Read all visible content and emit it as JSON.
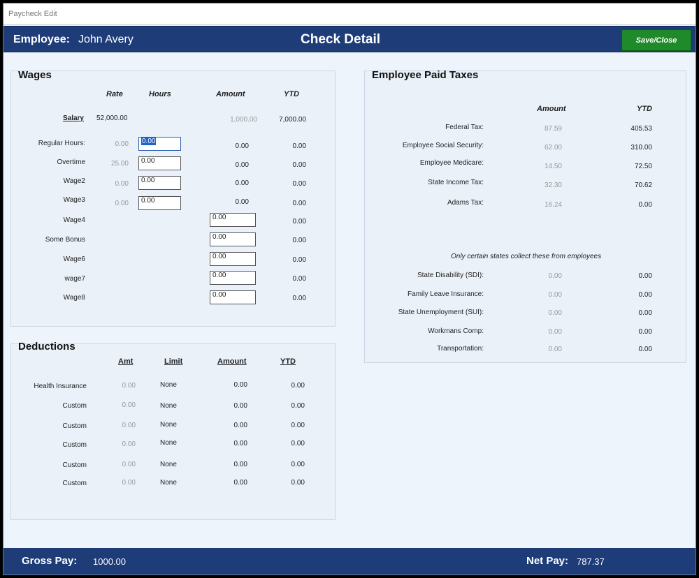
{
  "window": {
    "title": "Paycheck Edit"
  },
  "header": {
    "employee_label": "Employee:",
    "employee_name": "John Avery",
    "page_title": "Check Detail",
    "save_close_label": "Save/Close"
  },
  "wages": {
    "title": "Wages",
    "columns": {
      "rate": "Rate",
      "hours": "Hours",
      "amount": "Amount",
      "ytd": "YTD"
    },
    "salary": {
      "label": "Salary",
      "rate": "52,000.00",
      "amount": "1,000.00",
      "ytd": "7,000.00"
    },
    "hourly_rows": [
      {
        "label": "Regular Hours:",
        "rate": "0.00",
        "hours": "0.00",
        "amount": "0.00",
        "ytd": "0.00"
      },
      {
        "label": "Overtime",
        "rate": "25.00",
        "hours": "0.00",
        "amount": "0.00",
        "ytd": "0.00"
      },
      {
        "label": "Wage2",
        "rate": "0.00",
        "hours": "0.00",
        "amount": "0.00",
        "ytd": "0.00"
      },
      {
        "label": "Wage3",
        "rate": "0.00",
        "hours": "0.00",
        "amount": "0.00",
        "ytd": "0.00"
      }
    ],
    "amount_rows": [
      {
        "label": "Wage4",
        "amount": "0.00",
        "ytd": "0.00"
      },
      {
        "label": "Some Bonus",
        "amount": "0.00",
        "ytd": "0.00"
      },
      {
        "label": "Wage6",
        "amount": "0.00",
        "ytd": "0.00"
      },
      {
        "label": "wage7",
        "amount": "0.00",
        "ytd": "0.00"
      },
      {
        "label": "Wage8",
        "amount": "0.00",
        "ytd": "0.00"
      }
    ]
  },
  "deductions": {
    "title": "Deductions",
    "columns": {
      "amt": "Amt",
      "limit": "Limit",
      "amount": "Amount",
      "ytd": "YTD"
    },
    "rows": [
      {
        "label": "Health Insurance",
        "amt": "0.00",
        "limit": "None",
        "amount": "0.00",
        "ytd": "0.00"
      },
      {
        "label": "Custom",
        "amt": "0.00",
        "limit": "None",
        "amount": "0.00",
        "ytd": "0.00"
      },
      {
        "label": "Custom",
        "amt": "0.00",
        "limit": "None",
        "amount": "0.00",
        "ytd": "0.00"
      },
      {
        "label": "Custom",
        "amt": "0.00",
        "limit": "None",
        "amount": "0.00",
        "ytd": "0.00"
      },
      {
        "label": "Custom",
        "amt": "0.00",
        "limit": "None",
        "amount": "0.00",
        "ytd": "0.00"
      },
      {
        "label": "Custom",
        "amt": "0.00",
        "limit": "None",
        "amount": "0.00",
        "ytd": "0.00"
      }
    ]
  },
  "taxes": {
    "title": "Employee Paid Taxes",
    "columns": {
      "amount": "Amount",
      "ytd": "YTD"
    },
    "rows": [
      {
        "label": "Federal Tax:",
        "amount": "87.59",
        "ytd": "405.53"
      },
      {
        "label": "Employee Social Security:",
        "amount": "62.00",
        "ytd": "310.00"
      },
      {
        "label": "Employee Medicare:",
        "amount": "14.50",
        "ytd": "72.50"
      },
      {
        "label": "State Income Tax:",
        "amount": "32.30",
        "ytd": "70.62"
      },
      {
        "label": "Adams Tax:",
        "amount": "16.24",
        "ytd": "0.00"
      }
    ],
    "state_note": "Only certain states collect these from employees",
    "state_rows": [
      {
        "label": "State Disability (SDI):",
        "amount": "0.00",
        "ytd": "0.00"
      },
      {
        "label": "Family Leave Insurance:",
        "amount": "0.00",
        "ytd": "0.00"
      },
      {
        "label": "State Unemployment (SUI):",
        "amount": "0.00",
        "ytd": "0.00"
      },
      {
        "label": "Workmans Comp:",
        "amount": "0.00",
        "ytd": "0.00"
      },
      {
        "label": "Transportation:",
        "amount": "0.00",
        "ytd": "0.00"
      }
    ]
  },
  "footer": {
    "gross_label": "Gross Pay:",
    "gross_value": "1000.00",
    "net_label": "Net Pay:",
    "net_value": "787.37"
  }
}
